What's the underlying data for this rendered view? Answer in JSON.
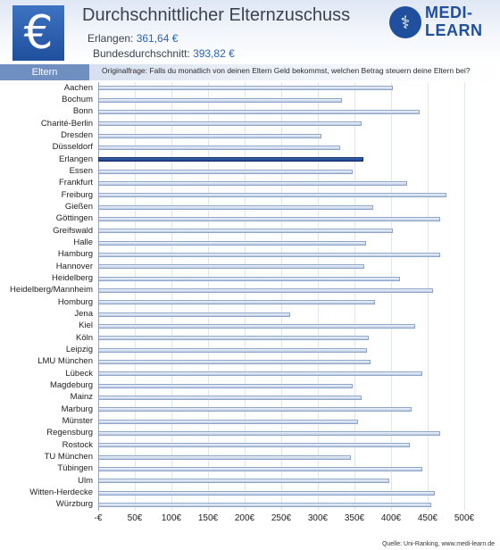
{
  "header": {
    "euro_symbol": "€",
    "title": "Durchschnittlicher Elternzuschuss",
    "subtitle1_label": "Erlangen: ",
    "subtitle1_value": "361,64 €",
    "subtitle2_label": "Bundesdurchschnitt: ",
    "subtitle2_value": "393,82 €"
  },
  "logo": {
    "line1": "MEDI-",
    "line2": "LEARN",
    "icon": "caduceus-icon"
  },
  "band": {
    "label": "Eltern",
    "question": "Originalfrage: Falls du monatlich von deinen Eltern Geld bekommst, welchen Betrag steuern deine Eltern bei?"
  },
  "source": "Quelle: Uni-Ranking, www.medi-learn.de",
  "colors": {
    "bar_normal": "#b9c9e2",
    "bar_highlight": "#1c3f86",
    "brand": "#1f4f9d",
    "accent_value": "#2a63b8"
  },
  "chart_data": {
    "type": "bar",
    "orientation": "horizontal",
    "highlight": "Erlangen",
    "categories": [
      "Aachen",
      "Bochum",
      "Bonn",
      "Charité-Berlin",
      "Dresden",
      "Düsseldorf",
      "Erlangen",
      "Essen",
      "Frankfurt",
      "Freiburg",
      "Gießen",
      "Göttingen",
      "Greifswald",
      "Halle",
      "Hamburg",
      "Hannover",
      "Heidelberg",
      "Heidelberg/Mannheim",
      "Homburg",
      "Jena",
      "Kiel",
      "Köln",
      "Leipzig",
      "LMU München",
      "Lübeck",
      "Magdeburg",
      "Mainz",
      "Marburg",
      "Münster",
      "Regensburg",
      "Rostock",
      "TU München",
      "Tübingen",
      "Ulm",
      "Witten-Herdecke",
      "Würzburg"
    ],
    "values": [
      403,
      333,
      439,
      360,
      305,
      330,
      361.64,
      348,
      422,
      476,
      375,
      467,
      402,
      366,
      467,
      364,
      412,
      457,
      378,
      262,
      433,
      370,
      367,
      372,
      443,
      348,
      360,
      428,
      355,
      467,
      426,
      345,
      443,
      397,
      460,
      455
    ],
    "xlim": [
      0,
      500
    ],
    "xticks": [
      "-€",
      "50€",
      "100€",
      "150€",
      "200€",
      "250€",
      "300€",
      "350€",
      "400€",
      "450€",
      "500€"
    ],
    "tick_values": [
      0,
      50,
      100,
      150,
      200,
      250,
      300,
      350,
      400,
      450,
      500
    ],
    "grid": true
  }
}
